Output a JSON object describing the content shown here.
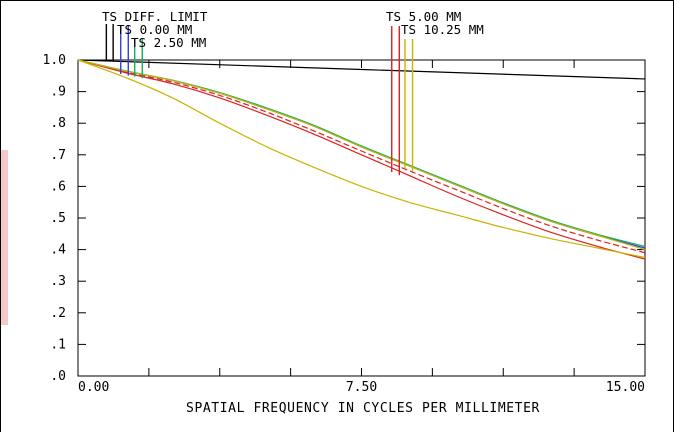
{
  "chart_data": {
    "type": "line",
    "xlabel": "SPATIAL FREQUENCY IN CYCLES PER MILLIMETER",
    "ylabel": "",
    "xlim": [
      0,
      15
    ],
    "ylim": [
      0,
      1
    ],
    "x_tick_labels": [
      "0.00",
      "7.50",
      "15.00"
    ],
    "y_tick_labels": [
      "1.0",
      ".9",
      ".8",
      ".7",
      ".6",
      ".5",
      ".4",
      ".3",
      ".2",
      ".1",
      ".0"
    ],
    "legend": [
      {
        "label": "TS DIFF. LIMIT",
        "color": "#000000"
      },
      {
        "label": "TS 0.00 MM",
        "color": "#3040e0"
      },
      {
        "label": "TS 2.50 MM",
        "color": "#10b060"
      },
      {
        "label": "TS 5.00 MM",
        "color": "#e02020"
      },
      {
        "label": "TS 10.25 MM",
        "color": "#c8b400"
      }
    ],
    "series": [
      {
        "name": "TS DIFF. LIMIT",
        "color": "#000000",
        "dash": false,
        "x": [
          0,
          15
        ],
        "values": [
          1.0,
          0.94
        ]
      },
      {
        "name": "TS 0.00 MM",
        "color": "#3040e0",
        "dash": false,
        "x": [
          0,
          1.25,
          2.5,
          3.75,
          5.0,
          6.25,
          7.5,
          8.75,
          10.0,
          11.25,
          12.5,
          13.75,
          15.0
        ],
        "values": [
          1.0,
          0.965,
          0.935,
          0.895,
          0.845,
          0.79,
          0.725,
          0.665,
          0.605,
          0.545,
          0.49,
          0.445,
          0.405
        ]
      },
      {
        "name": "TS 2.50 MM",
        "color": "#10b060",
        "dash": false,
        "x": [
          0,
          1.25,
          2.5,
          3.75,
          5.0,
          6.25,
          7.5,
          8.75,
          10.0,
          11.25,
          12.5,
          13.75,
          15.0
        ],
        "values": [
          1.0,
          0.966,
          0.936,
          0.897,
          0.848,
          0.793,
          0.728,
          0.668,
          0.608,
          0.548,
          0.493,
          0.448,
          0.41
        ]
      },
      {
        "name": "TS 5.00 MM",
        "color": "#e02020",
        "dash": false,
        "x": [
          0,
          1.25,
          2.5,
          3.75,
          5.0,
          6.25,
          7.5,
          8.75,
          10.0,
          11.25,
          12.5,
          13.75,
          15.0
        ],
        "values": [
          1.0,
          0.96,
          0.925,
          0.88,
          0.825,
          0.765,
          0.7,
          0.635,
          0.57,
          0.51,
          0.455,
          0.41,
          0.37
        ]
      },
      {
        "name": "TS 5.00 MM",
        "color": "#e02020",
        "dash": true,
        "x": [
          0,
          1.25,
          2.5,
          3.75,
          5.0,
          6.25,
          7.5,
          8.75,
          10.0,
          11.25,
          12.5,
          13.75,
          15.0
        ],
        "values": [
          1.0,
          0.962,
          0.93,
          0.888,
          0.835,
          0.775,
          0.712,
          0.65,
          0.59,
          0.53,
          0.475,
          0.43,
          0.39
        ]
      },
      {
        "name": "TS 10.25 MM",
        "color": "#c8b400",
        "dash": false,
        "x": [
          0,
          1.25,
          2.5,
          3.75,
          5.0,
          6.25,
          7.5,
          8.75,
          10.0,
          11.25,
          12.5,
          13.75,
          15.0
        ],
        "values": [
          1.0,
          0.965,
          0.935,
          0.895,
          0.845,
          0.79,
          0.725,
          0.665,
          0.605,
          0.545,
          0.49,
          0.445,
          0.4
        ]
      },
      {
        "name": "TS 10.25 MM",
        "color": "#c8b400",
        "dash": false,
        "x": [
          0,
          1.25,
          2.5,
          3.75,
          5.0,
          6.25,
          7.5,
          8.75,
          10.0,
          11.25,
          12.5,
          13.75,
          15.0
        ],
        "values": [
          1.0,
          0.945,
          0.88,
          0.8,
          0.725,
          0.66,
          0.6,
          0.55,
          0.51,
          0.47,
          0.435,
          0.405,
          0.375
        ]
      }
    ],
    "markers": [
      {
        "label": "TS DIFF. LIMIT",
        "color": "#000000",
        "x": 0.75
      },
      {
        "label": "TS DIFF. LIMIT",
        "color": "#000000",
        "x": 0.93
      },
      {
        "label": "TS 0.00 MM",
        "color": "#3040e0",
        "x": 1.13
      },
      {
        "label": "TS 0.00 MM",
        "color": "#3040e0",
        "x": 1.33
      },
      {
        "label": "TS 2.50 MM",
        "color": "#10b060",
        "x": 1.5
      },
      {
        "label": "TS 2.50 MM",
        "color": "#10b060",
        "x": 1.7
      },
      {
        "label": "TS 5.00 MM",
        "color": "#e02020",
        "x": 8.3
      },
      {
        "label": "TS 5.00 MM",
        "color": "#e02020",
        "x": 8.5
      },
      {
        "label": "TS 10.25 MM",
        "color": "#c8b400",
        "x": 8.65
      },
      {
        "label": "TS 10.25 MM",
        "color": "#c8b400",
        "x": 8.85
      }
    ]
  }
}
